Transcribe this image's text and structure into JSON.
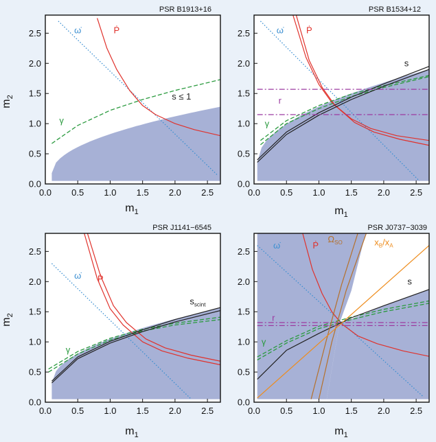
{
  "figure": {
    "background": "#eaf1f9",
    "colors": {
      "region": "#a7b1d6",
      "omega_dot": "#3b8fd1",
      "p_dot": "#e0312b",
      "gamma": "#2a9a3e",
      "shapiro": "#222222",
      "r": "#9b3aa0",
      "omega_so": "#b5702a",
      "xratio": "#ee8c1c"
    }
  },
  "chart_data": [
    {
      "type": "line",
      "title": "PSR B1913+16",
      "xlabel": "m",
      "xlabel_sub": "1",
      "ylabel": "m",
      "ylabel_sub": "2",
      "xlim": [
        0,
        2.7
      ],
      "ylim": [
        0,
        2.8
      ],
      "xticks": [
        "0.0",
        "0.5",
        "1.0",
        "1.5",
        "2.0",
        "2.5"
      ],
      "yticks": [
        "0.0",
        "0.5",
        "1.0",
        "1.5",
        "2.0",
        "2.5"
      ],
      "allowed_region": {
        "label": "s ≤ 1",
        "x": [
          0.1,
          2.7
        ],
        "lower": [
          0.05,
          0.05
        ],
        "upper": [
          0.18,
          1.28
        ]
      },
      "series": [
        {
          "name": "omega_dot",
          "label": "ω̇",
          "style": "dotted",
          "color": "omega_dot",
          "x": [
            0.2,
            2.65
          ],
          "y": [
            2.7,
            0.15
          ]
        },
        {
          "name": "p_dot",
          "label": "Ṗ",
          "style": "solid",
          "color": "p_dot",
          "x": [
            0.8,
            0.95,
            1.1,
            1.3,
            1.5,
            1.7,
            2.0,
            2.3,
            2.7
          ],
          "y": [
            2.75,
            2.25,
            1.9,
            1.55,
            1.3,
            1.15,
            1.0,
            0.9,
            0.8
          ]
        },
        {
          "name": "gamma",
          "label": "γ",
          "style": "dashed",
          "color": "gamma",
          "x": [
            0.1,
            0.5,
            1.0,
            1.5,
            2.0,
            2.7
          ],
          "y": [
            0.67,
            0.97,
            1.22,
            1.4,
            1.55,
            1.73
          ]
        }
      ],
      "labels": [
        {
          "text": "ω̇",
          "x": 0.5,
          "y": 2.5,
          "color": "omega_dot"
        },
        {
          "text": "Ṗ",
          "x": 1.1,
          "y": 2.5,
          "color": "p_dot"
        },
        {
          "text": "γ",
          "x": 0.25,
          "y": 1.0,
          "color": "gamma"
        },
        {
          "text": "s ≤ 1",
          "x": 2.1,
          "y": 1.4,
          "color": "shapiro"
        }
      ]
    },
    {
      "type": "line",
      "title": "PSR B1534+12",
      "xlabel": "m",
      "xlabel_sub": "1",
      "ylabel": "m",
      "ylabel_sub": "2",
      "xlim": [
        0,
        2.7
      ],
      "ylim": [
        0,
        2.8
      ],
      "xticks": [
        "0.0",
        "0.5",
        "1.0",
        "1.5",
        "2.0",
        "2.5"
      ],
      "yticks": [
        "0.0",
        "0.5",
        "1.0",
        "1.5",
        "2.0",
        "2.5"
      ],
      "allowed_region": {
        "label": "",
        "x": [
          0.05,
          2.7
        ],
        "lower": [
          0.05,
          0.05
        ],
        "upper": [
          0.36,
          1.9
        ]
      },
      "series": [
        {
          "name": "omega_dot",
          "label": "ω̇",
          "style": "dotted",
          "color": "omega_dot",
          "x": [
            0.1,
            2.55
          ],
          "y": [
            2.7,
            0.05
          ]
        },
        {
          "name": "p_dot_1",
          "label": "Ṗ",
          "style": "solid",
          "color": "p_dot",
          "x": [
            0.6,
            0.8,
            1.0,
            1.2,
            1.5,
            1.8,
            2.2,
            2.7
          ],
          "y": [
            2.8,
            2.1,
            1.65,
            1.35,
            1.08,
            0.92,
            0.8,
            0.72
          ]
        },
        {
          "name": "p_dot_2",
          "label": "",
          "style": "solid",
          "color": "p_dot",
          "x": [
            0.65,
            0.85,
            1.05,
            1.25,
            1.55,
            1.85,
            2.25,
            2.7
          ],
          "y": [
            2.8,
            2.05,
            1.6,
            1.3,
            1.02,
            0.86,
            0.74,
            0.64
          ]
        },
        {
          "name": "gamma_1",
          "label": "γ",
          "style": "dashed",
          "color": "gamma",
          "x": [
            0.1,
            0.5,
            1.0,
            1.5,
            2.0,
            2.7
          ],
          "y": [
            0.65,
            1.0,
            1.25,
            1.45,
            1.6,
            1.78
          ]
        },
        {
          "name": "gamma_2",
          "label": "",
          "style": "dashed",
          "color": "gamma",
          "x": [
            0.1,
            0.5,
            1.0,
            1.5,
            2.0,
            2.7
          ],
          "y": [
            0.72,
            1.05,
            1.3,
            1.49,
            1.63,
            1.8
          ]
        },
        {
          "name": "s_1",
          "label": "s",
          "style": "solid",
          "color": "shapiro",
          "x": [
            0.05,
            0.5,
            1.0,
            1.5,
            2.0,
            2.7
          ],
          "y": [
            0.36,
            0.82,
            1.14,
            1.4,
            1.62,
            1.9
          ]
        },
        {
          "name": "s_2",
          "label": "",
          "style": "solid",
          "color": "shapiro",
          "x": [
            0.05,
            0.5,
            1.0,
            1.5,
            2.0,
            2.7
          ],
          "y": [
            0.4,
            0.86,
            1.18,
            1.44,
            1.66,
            1.95
          ]
        },
        {
          "name": "r_1",
          "label": "r",
          "style": "dashdot",
          "color": "r",
          "x": [
            0.05,
            2.7
          ],
          "y": [
            1.57,
            1.57
          ]
        },
        {
          "name": "r_2",
          "label": "",
          "style": "dashdot",
          "color": "r",
          "x": [
            0.05,
            2.7
          ],
          "y": [
            1.15,
            1.15
          ]
        }
      ],
      "labels": [
        {
          "text": "ω̇",
          "x": 0.4,
          "y": 2.5,
          "color": "omega_dot"
        },
        {
          "text": "Ṗ",
          "x": 0.85,
          "y": 2.5,
          "color": "p_dot"
        },
        {
          "text": "γ",
          "x": 0.2,
          "y": 0.95,
          "color": "gamma"
        },
        {
          "text": "r",
          "x": 0.4,
          "y": 1.33,
          "color": "r"
        },
        {
          "text": "s",
          "x": 2.35,
          "y": 1.95,
          "color": "shapiro"
        }
      ]
    },
    {
      "type": "line",
      "title": "PSR J1141−6545",
      "xlabel": "m",
      "xlabel_sub": "1",
      "ylabel": "m",
      "ylabel_sub": "2",
      "xlim": [
        0,
        2.7
      ],
      "ylim": [
        0,
        2.8
      ],
      "xticks": [
        "0.0",
        "0.5",
        "1.0",
        "1.5",
        "2.0",
        "2.5"
      ],
      "yticks": [
        "0.0",
        "0.5",
        "1.0",
        "1.5",
        "2.0",
        "2.5"
      ],
      "allowed_region": {
        "label": "",
        "x": [
          0.1,
          2.7
        ],
        "lower": [
          0.05,
          0.05
        ],
        "upper": [
          0.32,
          1.56
        ]
      },
      "series": [
        {
          "name": "omega_dot",
          "label": "ω̇",
          "style": "dotted",
          "color": "omega_dot",
          "x": [
            0.1,
            2.25
          ],
          "y": [
            2.3,
            0.05
          ]
        },
        {
          "name": "p_dot_1",
          "label": "Ṗ",
          "style": "solid",
          "color": "p_dot",
          "x": [
            0.6,
            0.8,
            1.0,
            1.2,
            1.5,
            1.8,
            2.2,
            2.7
          ],
          "y": [
            2.8,
            2.05,
            1.55,
            1.28,
            1.0,
            0.85,
            0.73,
            0.62
          ]
        },
        {
          "name": "p_dot_2",
          "label": "",
          "style": "solid",
          "color": "p_dot",
          "x": [
            0.65,
            0.85,
            1.05,
            1.25,
            1.55,
            1.85,
            2.25,
            2.7
          ],
          "y": [
            2.8,
            2.1,
            1.6,
            1.32,
            1.05,
            0.9,
            0.78,
            0.68
          ]
        },
        {
          "name": "gamma_1",
          "label": "γ",
          "style": "dashed",
          "color": "gamma",
          "x": [
            0.05,
            0.5,
            1.0,
            1.5,
            2.0,
            2.7
          ],
          "y": [
            0.5,
            0.8,
            1.03,
            1.18,
            1.28,
            1.37
          ]
        },
        {
          "name": "gamma_2",
          "label": "",
          "style": "dashed",
          "color": "gamma",
          "x": [
            0.05,
            0.5,
            1.0,
            1.5,
            2.0,
            2.7
          ],
          "y": [
            0.55,
            0.84,
            1.06,
            1.21,
            1.31,
            1.41
          ]
        },
        {
          "name": "s_1",
          "label": "sscint",
          "style": "solid",
          "color": "shapiro",
          "x": [
            0.1,
            0.5,
            1.0,
            1.5,
            2.0,
            2.7
          ],
          "y": [
            0.32,
            0.72,
            0.98,
            1.17,
            1.33,
            1.52
          ]
        },
        {
          "name": "s_2",
          "label": "",
          "style": "solid",
          "color": "shapiro",
          "x": [
            0.1,
            0.5,
            1.0,
            1.5,
            2.0,
            2.7
          ],
          "y": [
            0.35,
            0.75,
            1.01,
            1.2,
            1.37,
            1.57
          ]
        }
      ],
      "labels": [
        {
          "text": "ω̇",
          "x": 0.5,
          "y": 2.05,
          "color": "omega_dot"
        },
        {
          "text": "Ṗ",
          "x": 0.85,
          "y": 2.0,
          "color": "p_dot"
        },
        {
          "text": "γ",
          "x": 0.35,
          "y": 0.82,
          "color": "gamma"
        },
        {
          "text": "s",
          "sub": "scint",
          "x": 2.35,
          "y": 1.62,
          "color": "shapiro"
        }
      ]
    },
    {
      "type": "line",
      "title": "PSR J0737−3039",
      "xlabel": "m",
      "xlabel_sub": "1",
      "ylabel": "",
      "ylabel_sub": "",
      "xlim": [
        0,
        2.7
      ],
      "ylim": [
        0,
        2.8
      ],
      "xticks": [
        "0.0",
        "0.5",
        "1.0",
        "1.5",
        "2.0",
        "2.5"
      ],
      "yticks": [
        "0.0",
        "0.5",
        "1.0",
        "1.5",
        "2.0",
        "2.5"
      ],
      "series": [
        {
          "name": "omega_dot",
          "label": "ω̇",
          "style": "dotted",
          "color": "omega_dot",
          "x": [
            0.05,
            2.6
          ],
          "y": [
            2.6,
            0.1
          ]
        },
        {
          "name": "p_dot",
          "label": "Ṗ",
          "style": "solid",
          "color": "p_dot",
          "x": [
            0.75,
            0.9,
            1.05,
            1.2,
            1.35,
            1.6,
            1.9,
            2.3,
            2.7
          ],
          "y": [
            2.8,
            2.2,
            1.8,
            1.5,
            1.3,
            1.1,
            0.97,
            0.85,
            0.76
          ]
        },
        {
          "name": "gamma_1",
          "label": "γ",
          "style": "dashed",
          "color": "gamma",
          "x": [
            0.05,
            0.5,
            1.0,
            1.5,
            2.0,
            2.7
          ],
          "y": [
            0.7,
            0.98,
            1.22,
            1.37,
            1.5,
            1.64
          ]
        },
        {
          "name": "gamma_2",
          "label": "",
          "style": "dashed",
          "color": "gamma",
          "x": [
            0.05,
            0.5,
            1.0,
            1.5,
            2.0,
            2.7
          ],
          "y": [
            0.75,
            1.02,
            1.26,
            1.41,
            1.54,
            1.68
          ]
        },
        {
          "name": "s",
          "label": "s",
          "style": "solid",
          "color": "shapiro",
          "x": [
            0.05,
            0.5,
            1.0,
            1.5,
            2.0,
            2.7
          ],
          "y": [
            0.38,
            0.86,
            1.14,
            1.4,
            1.6,
            1.87
          ]
        },
        {
          "name": "r_1",
          "label": "r",
          "style": "dashdot",
          "color": "r",
          "x": [
            0.05,
            2.7
          ],
          "y": [
            1.32,
            1.32
          ]
        },
        {
          "name": "r_2",
          "label": "",
          "style": "dashdot",
          "color": "r",
          "x": [
            0.05,
            2.7
          ],
          "y": [
            1.27,
            1.27
          ]
        },
        {
          "name": "omega_so_1",
          "label": "Ωso",
          "style": "solid",
          "color": "omega_so",
          "x": [
            0.88,
            1.12,
            1.35,
            1.6
          ],
          "y": [
            0.05,
            1.05,
            1.95,
            2.8
          ]
        },
        {
          "name": "omega_so_2",
          "label": "",
          "style": "solid",
          "color": "omega_so",
          "x": [
            1.0,
            1.2,
            1.42,
            1.73
          ],
          "y": [
            0.05,
            1.0,
            1.85,
            2.8
          ]
        },
        {
          "name": "xratio",
          "label": "xB/xA",
          "style": "solid",
          "color": "xratio",
          "x": [
            0.05,
            2.7
          ],
          "y": [
            0.07,
            2.6
          ]
        }
      ],
      "fills": [
        {
          "name": "excluded_left",
          "polygon": [
            [
              0.05,
              0.05
            ],
            [
              0.05,
              2.8
            ],
            [
              1.72,
              2.8
            ],
            [
              1.5,
              1.85
            ],
            [
              1.32,
              1.32
            ],
            [
              1.12,
              0.05
            ]
          ]
        },
        {
          "name": "excluded_bottom",
          "polygon": [
            [
              1.12,
              0.05
            ],
            [
              1.32,
              1.32
            ],
            [
              1.5,
              1.38
            ],
            [
              2.0,
              1.6
            ],
            [
              2.7,
              1.87
            ],
            [
              2.7,
              0.05
            ]
          ]
        }
      ],
      "labels": [
        {
          "text": "ω̇",
          "x": 0.35,
          "y": 2.55,
          "color": "omega_dot"
        },
        {
          "text": "Ṗ",
          "x": 0.95,
          "y": 2.55,
          "color": "p_dot"
        },
        {
          "text": "Ω",
          "sub": "SO",
          "x": 1.25,
          "y": 2.65,
          "color": "omega_so"
        },
        {
          "text": "x",
          "sub": "B",
          "text2": "/x",
          "sub2": "A",
          "x": 2.0,
          "y": 2.6,
          "color": "xratio"
        },
        {
          "text": "γ",
          "x": 0.15,
          "y": 0.95,
          "color": "gamma"
        },
        {
          "text": "r",
          "x": 0.3,
          "y": 1.35,
          "color": "r"
        },
        {
          "text": "s",
          "x": 2.4,
          "y": 1.95,
          "color": "shapiro"
        }
      ]
    }
  ]
}
